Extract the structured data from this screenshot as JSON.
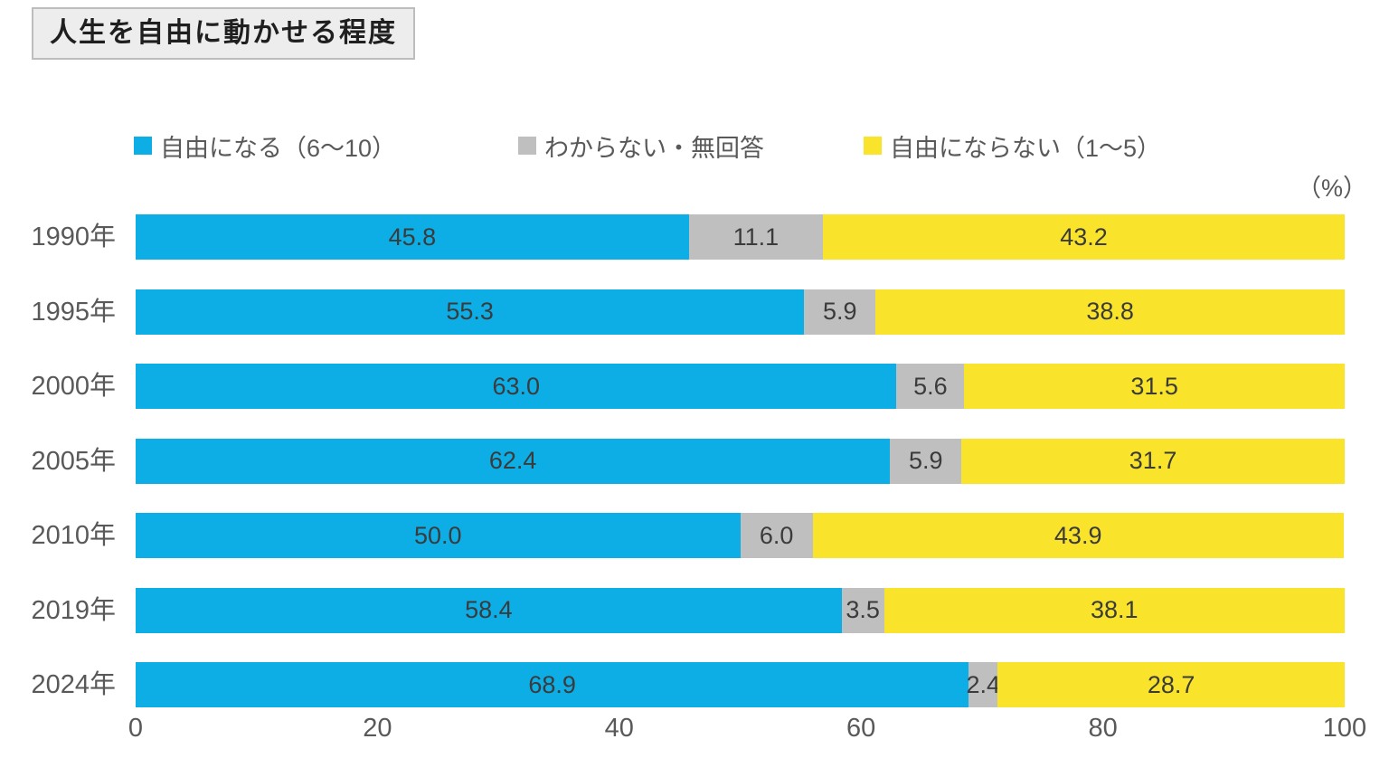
{
  "title": "人生を自由に動かせる程度",
  "unit": "（%）",
  "chart_data": {
    "type": "bar",
    "orientation": "horizontal",
    "stacked": true,
    "title": "人生を自由に動かせる程度",
    "unit_label": "（%）",
    "categories": [
      "1990年",
      "1995年",
      "2000年",
      "2005年",
      "2010年",
      "2019年",
      "2024年"
    ],
    "series": [
      {
        "name": "自由になる（6〜10）",
        "color": "#0DADE6",
        "values": [
          45.8,
          55.3,
          63.0,
          62.4,
          50.0,
          58.4,
          68.9
        ]
      },
      {
        "name": "わからない・無回答",
        "color": "#BFBFBF",
        "values": [
          11.1,
          5.9,
          5.6,
          5.9,
          6.0,
          3.5,
          2.4
        ]
      },
      {
        "name": "自由にならない（1〜5）",
        "color": "#F9E42B",
        "values": [
          43.2,
          38.8,
          31.5,
          31.7,
          43.9,
          38.1,
          28.7
        ]
      }
    ],
    "x_ticks": [
      0,
      20,
      40,
      60,
      80,
      100
    ],
    "xlim": [
      0,
      100
    ],
    "value_label_decimals": 1,
    "legend_position": "top",
    "grid": false
  }
}
